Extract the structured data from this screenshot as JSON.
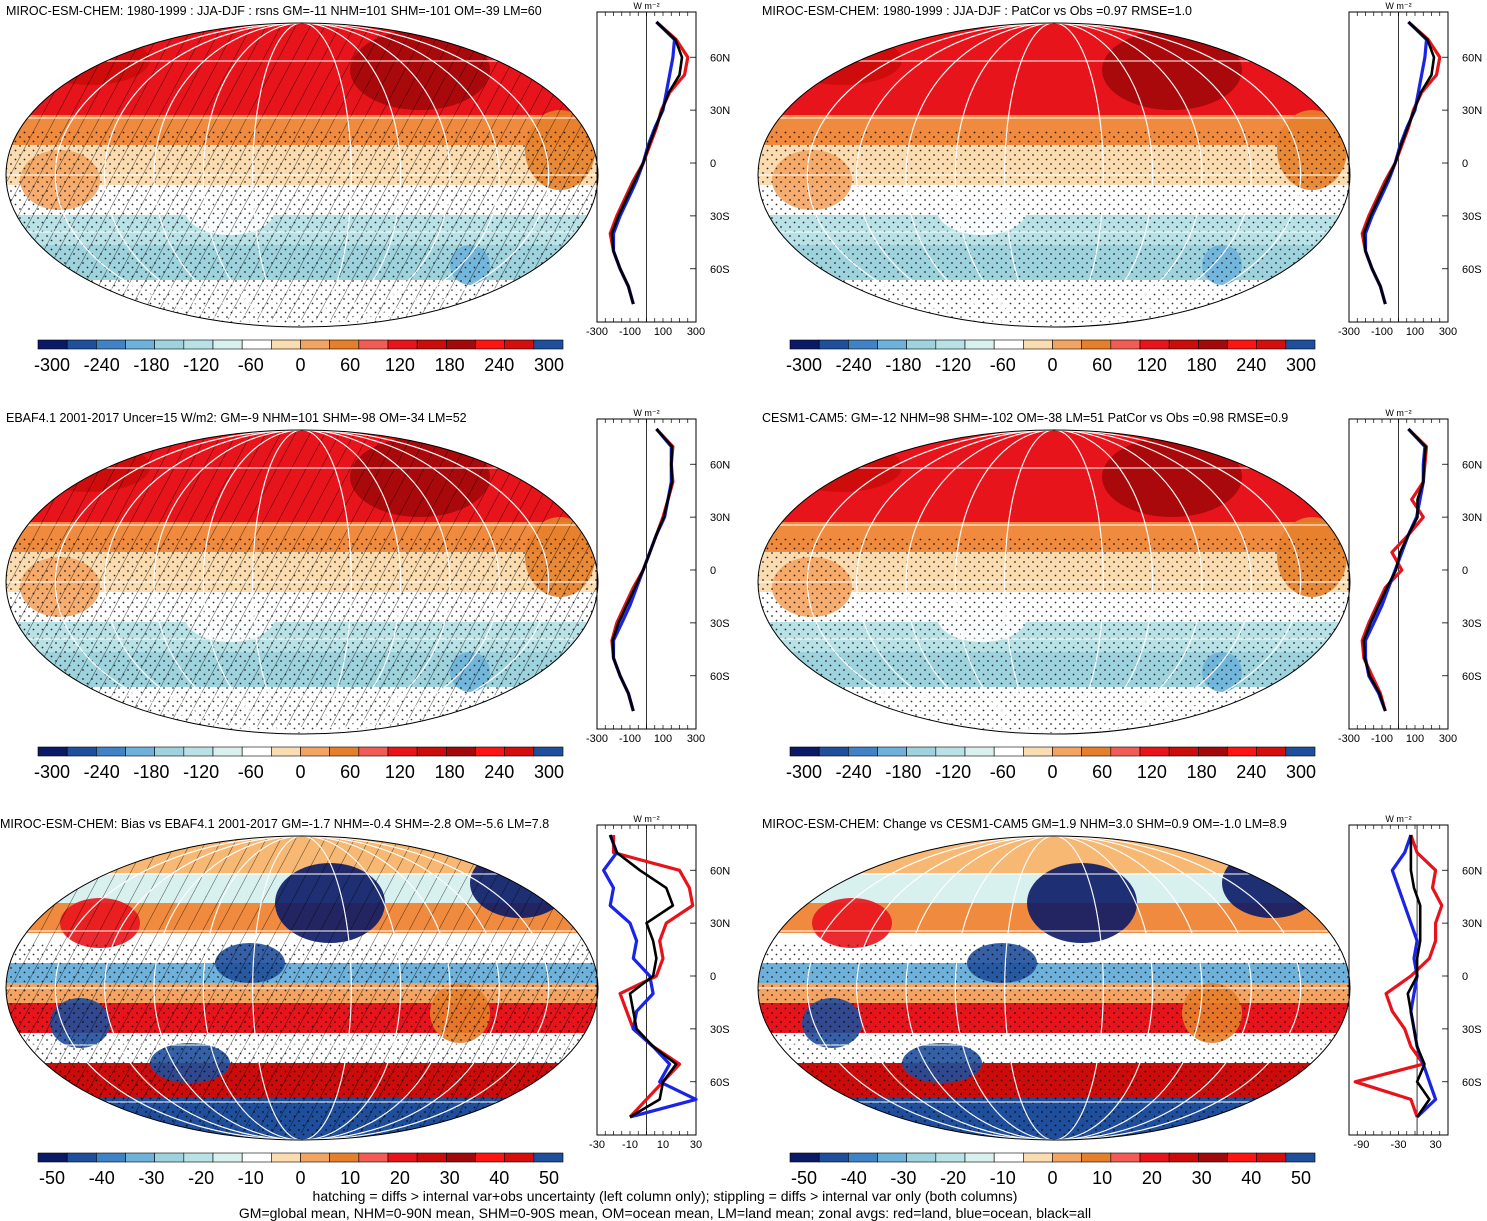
{
  "footnotes": [
    "hatching = diffs > internal var+obs uncertainty (left column only); stippling = diffs > internal var only (both columns)",
    "GM=global mean, NHM=0-90N mean, SHM=0-90S mean, OM=ocean mean, LM=land mean; zonal avgs: red=land, blue=ocean, black=all"
  ],
  "colors": {
    "land": "#e8121a",
    "ocean": "#1a24e6",
    "all": "#000000",
    "palette": [
      "#0b1a66",
      "#1f4f9c",
      "#3f82c6",
      "#6eb2dc",
      "#9ed3dd",
      "#b8e2e6",
      "#d8f0ee",
      "#ffffff",
      "#fbdcb0",
      "#f4a462",
      "#e67f2b",
      "#f25c54",
      "#e8141c",
      "#cc0b0b",
      "#a3080a",
      "#ff1414",
      "#d60d0d",
      "#1f4f9c"
    ]
  },
  "chart_data": [
    {
      "type": "heatmap",
      "title": "MIROC-ESM-CHEM: 1980-1999 : JJA-DJF : rsns GM=-11 NHM=101 SHM=-101 OM=-39 LM=60",
      "colorbar_ticks": [
        "-300",
        "-240",
        "-180",
        "-120",
        "-60",
        "0",
        "60",
        "120",
        "180",
        "240",
        "300"
      ],
      "lat_ticks": [
        "60N",
        "30N",
        "0",
        "30S",
        "60S"
      ],
      "zonal_xticks": [
        "-300",
        "-100",
        "100",
        "300"
      ],
      "zonal_xlim": [
        -300,
        300
      ],
      "zonal_unit": "W m⁻²",
      "hatching": true,
      "zonal_mean": {
        "lat": [
          80,
          70,
          60,
          50,
          40,
          30,
          20,
          10,
          0,
          -10,
          -20,
          -30,
          -40,
          -50,
          -60,
          -70,
          -80
        ],
        "land": [
          60,
          180,
          250,
          230,
          140,
          90,
          60,
          20,
          -20,
          -80,
          -130,
          -180,
          -220,
          -200,
          -160,
          -110,
          -80
        ],
        "ocean": [
          60,
          170,
          160,
          140,
          120,
          100,
          50,
          10,
          -20,
          -60,
          -110,
          -160,
          -200,
          -200,
          -160,
          -110,
          -80
        ],
        "all": [
          60,
          175,
          215,
          200,
          135,
          95,
          55,
          15,
          -20,
          -70,
          -120,
          -170,
          -210,
          -200,
          -160,
          -110,
          -80
        ]
      }
    },
    {
      "type": "heatmap",
      "title": "MIROC-ESM-CHEM: 1980-1999 : JJA-DJF : PatCor vs Obs =0.97 RMSE=1.0",
      "colorbar_ticks": [
        "-300",
        "-240",
        "-180",
        "-120",
        "-60",
        "0",
        "60",
        "120",
        "180",
        "240",
        "300"
      ],
      "lat_ticks": [
        "60N",
        "30N",
        "0",
        "30S",
        "60S"
      ],
      "zonal_xticks": [
        "-300",
        "-100",
        "100",
        "300"
      ],
      "zonal_xlim": [
        -300,
        300
      ],
      "zonal_unit": "W m⁻²",
      "hatching": false,
      "zonal_mean": {
        "lat": [
          80,
          70,
          60,
          50,
          40,
          30,
          20,
          10,
          0,
          -10,
          -20,
          -30,
          -40,
          -50,
          -60,
          -70,
          -80
        ],
        "land": [
          60,
          180,
          250,
          230,
          140,
          90,
          60,
          20,
          -20,
          -80,
          -130,
          -180,
          -220,
          -200,
          -160,
          -110,
          -80
        ],
        "ocean": [
          60,
          170,
          160,
          140,
          120,
          100,
          50,
          10,
          -20,
          -60,
          -110,
          -160,
          -200,
          -200,
          -160,
          -110,
          -80
        ],
        "all": [
          60,
          175,
          215,
          200,
          135,
          95,
          55,
          15,
          -20,
          -70,
          -120,
          -170,
          -210,
          -200,
          -160,
          -110,
          -80
        ]
      }
    },
    {
      "type": "heatmap",
      "title": "EBAF4.1 2001-2017 Uncer=15 W/m2: GM=-9 NHM=101 SHM=-98 OM=-34 LM=52",
      "colorbar_ticks": [
        "-300",
        "-240",
        "-180",
        "-120",
        "-60",
        "0",
        "60",
        "120",
        "180",
        "240",
        "300"
      ],
      "lat_ticks": [
        "60N",
        "30N",
        "0",
        "30S",
        "60S"
      ],
      "zonal_xticks": [
        "-300",
        "-100",
        "100",
        "300"
      ],
      "zonal_xlim": [
        -300,
        300
      ],
      "zonal_unit": "W m⁻²",
      "hatching": true,
      "zonal_mean": {
        "lat": [
          80,
          70,
          60,
          50,
          40,
          30,
          20,
          10,
          0,
          -10,
          -20,
          -30,
          -40,
          -50,
          -60,
          -70,
          -80
        ],
        "land": [
          60,
          160,
          150,
          160,
          130,
          100,
          60,
          20,
          -20,
          -80,
          -130,
          -180,
          -210,
          -200,
          -160,
          -110,
          -80
        ],
        "ocean": [
          60,
          150,
          150,
          150,
          130,
          110,
          60,
          20,
          -20,
          -60,
          -100,
          -150,
          -200,
          -200,
          -160,
          -110,
          -80
        ],
        "all": [
          60,
          155,
          150,
          155,
          130,
          105,
          60,
          20,
          -20,
          -70,
          -120,
          -170,
          -205,
          -200,
          -160,
          -110,
          -80
        ]
      }
    },
    {
      "type": "heatmap",
      "title": "CESM1-CAM5: GM=-12 NHM=98 SHM=-102 OM=-38 LM=51 PatCor vs Obs =0.98 RMSE=0.9",
      "colorbar_ticks": [
        "-300",
        "-240",
        "-180",
        "-120",
        "-60",
        "0",
        "60",
        "120",
        "180",
        "240",
        "300"
      ],
      "lat_ticks": [
        "60N",
        "30N",
        "0",
        "30S",
        "60S"
      ],
      "zonal_xticks": [
        "-300",
        "-100",
        "100",
        "300"
      ],
      "zonal_xlim": [
        -300,
        300
      ],
      "zonal_unit": "W m⁻²",
      "hatching": false,
      "zonal_mean": {
        "lat": [
          80,
          70,
          60,
          50,
          40,
          30,
          20,
          10,
          0,
          -10,
          -20,
          -30,
          -40,
          -50,
          -60,
          -70,
          -80
        ],
        "land": [
          60,
          170,
          160,
          150,
          80,
          150,
          60,
          -40,
          20,
          -80,
          -130,
          -180,
          -220,
          -210,
          -160,
          -110,
          -80
        ],
        "ocean": [
          60,
          160,
          150,
          150,
          130,
          110,
          60,
          20,
          -20,
          -60,
          -100,
          -150,
          -200,
          -200,
          -180,
          -120,
          -80
        ],
        "all": [
          60,
          165,
          155,
          150,
          115,
          115,
          60,
          10,
          -15,
          -70,
          -120,
          -170,
          -210,
          -205,
          -175,
          -115,
          -80
        ]
      }
    },
    {
      "type": "heatmap",
      "title": "MIROC-ESM-CHEM: Bias vs EBAF4.1 2001-2017 GM=-1.7 NHM=-0.4 SHM=-2.8 OM=-5.6 LM=7.8",
      "colorbar_ticks": [
        "-50",
        "-40",
        "-30",
        "-20",
        "-10",
        "0",
        "10",
        "20",
        "30",
        "40",
        "50"
      ],
      "lat_ticks": [
        "60N",
        "30N",
        "0",
        "30S",
        "60S"
      ],
      "zonal_xticks": [
        "-30",
        "-10",
        "10",
        "30"
      ],
      "zonal_xlim": [
        -30,
        30
      ],
      "zonal_unit": "W m⁻²",
      "hatching": true,
      "zonal_mean": {
        "lat": [
          80,
          70,
          60,
          50,
          40,
          30,
          20,
          10,
          0,
          -10,
          -20,
          -30,
          -40,
          -50,
          -60,
          -70,
          -80
        ],
        "land": [
          -20,
          -20,
          20,
          26,
          28,
          12,
          8,
          10,
          6,
          -16,
          -12,
          -8,
          4,
          20,
          10,
          0,
          -10
        ],
        "ocean": [
          -22,
          -18,
          -26,
          -20,
          -22,
          -10,
          -6,
          -8,
          2,
          4,
          -6,
          -8,
          4,
          14,
          8,
          30,
          -10
        ],
        "all": [
          -22,
          -18,
          -4,
          12,
          16,
          0,
          4,
          6,
          4,
          -10,
          -8,
          -6,
          4,
          18,
          10,
          8,
          -10
        ]
      }
    },
    {
      "type": "heatmap",
      "title": "MIROC-ESM-CHEM: Change vs CESM1-CAM5 GM=1.9 NHM=3.0 SHM=0.9 OM=-1.0 LM=8.9",
      "colorbar_ticks": [
        "-50",
        "-40",
        "-30",
        "-20",
        "-10",
        "0",
        "10",
        "20",
        "30",
        "40",
        "50"
      ],
      "lat_ticks": [
        "60N",
        "30N",
        "0",
        "30S",
        "60S"
      ],
      "zonal_xticks": [
        "-90",
        "-30",
        "30"
      ],
      "zonal_xlim": [
        -110,
        50
      ],
      "zonal_unit": "W m⁻²",
      "hatching": false,
      "zonal_mean": {
        "lat": [
          80,
          70,
          60,
          50,
          40,
          30,
          20,
          10,
          0,
          -10,
          -20,
          -30,
          -40,
          -50,
          -60,
          -70,
          -80
        ],
        "land": [
          -10,
          0,
          30,
          25,
          40,
          30,
          30,
          20,
          -10,
          -50,
          -40,
          -20,
          -10,
          10,
          -100,
          -10,
          0
        ],
        "ocean": [
          -10,
          -20,
          -40,
          -30,
          -20,
          -10,
          0,
          -5,
          0,
          -5,
          -10,
          -5,
          0,
          10,
          20,
          30,
          0
        ],
        "all": [
          -10,
          -10,
          -10,
          -5,
          5,
          5,
          5,
          0,
          0,
          -15,
          -10,
          -5,
          0,
          12,
          0,
          20,
          0
        ]
      }
    }
  ]
}
